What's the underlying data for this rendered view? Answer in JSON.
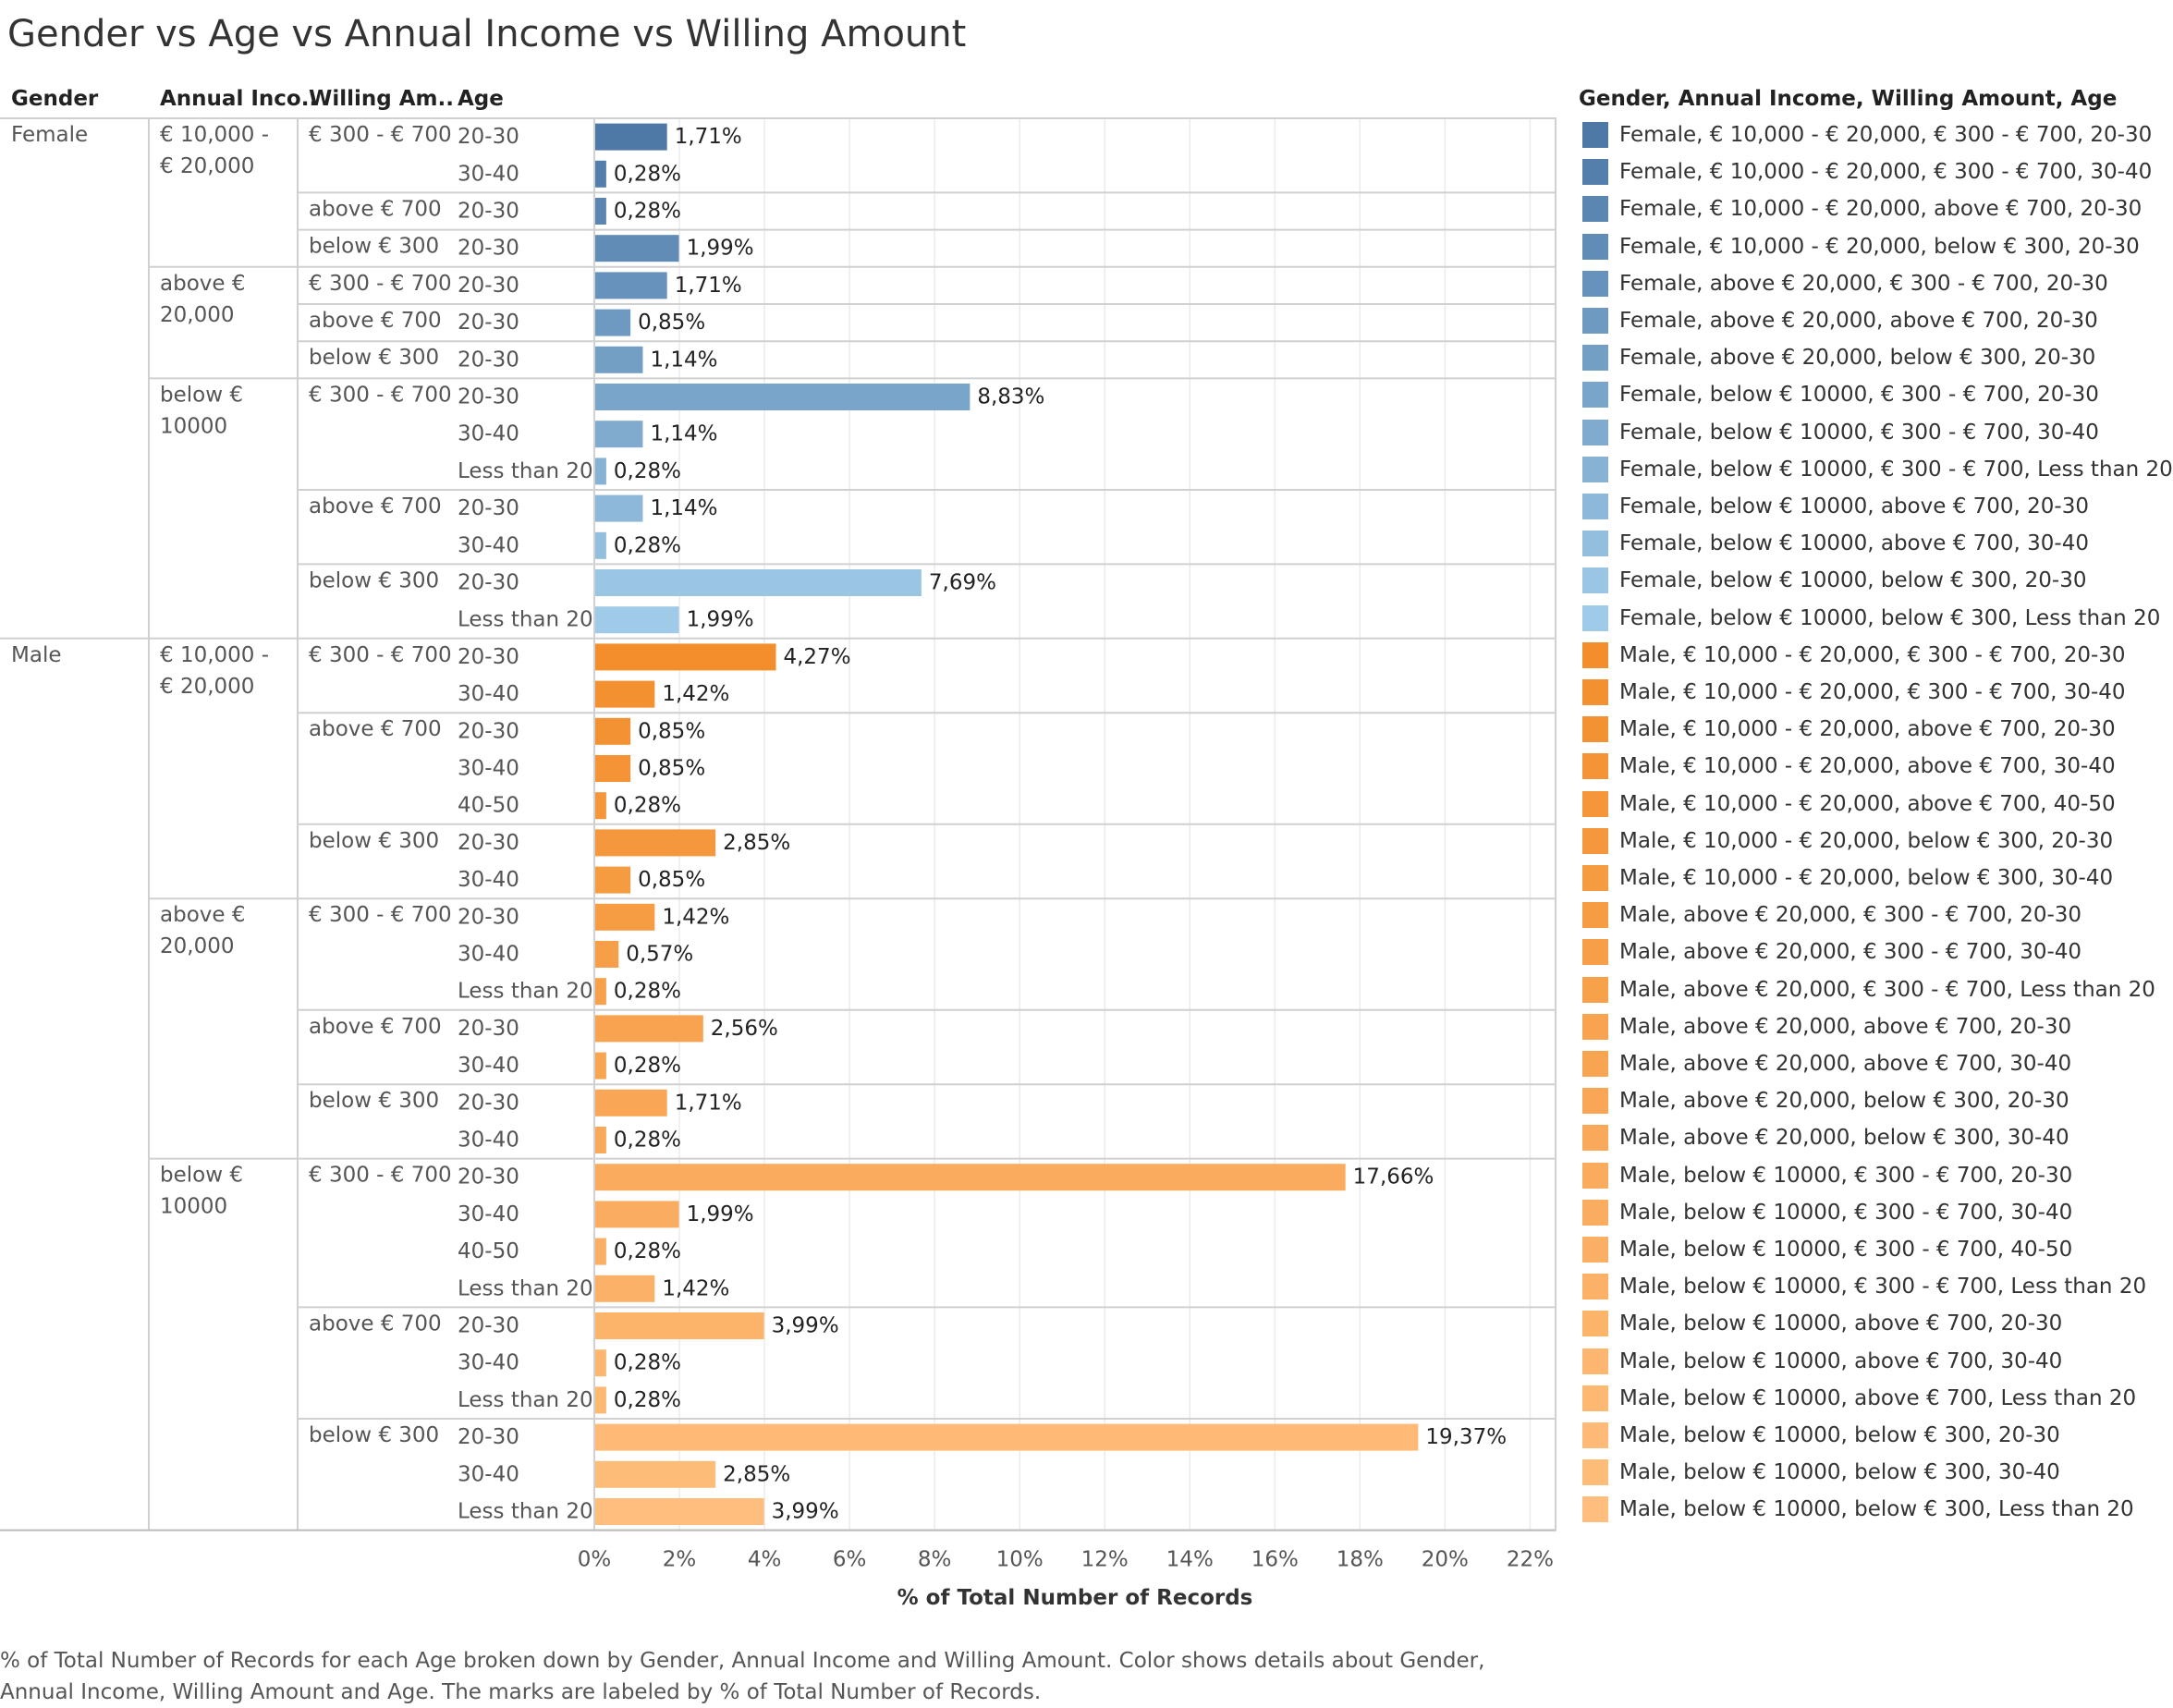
{
  "title": "Gender vs Age vs Annual Income vs Willing Amount",
  "headers": {
    "gender": "Gender",
    "income": "Annual Inco..",
    "willing": "Willing Am..",
    "age": "Age"
  },
  "legend_title": "Gender, Annual Income, Willing Amount, Age",
  "caption": "% of Total Number of Records for each Age broken down by Gender, Annual Income and Willing Amount.  Color shows details about Gender, Annual Income, Willing Amount and Age.  The marks are labeled by % of Total Number of Records.",
  "colors": {
    "female_start": "#4e79a7",
    "female_end": "#a0cbe8",
    "male_start": "#f28e2b",
    "male_end": "#ffbe7d"
  },
  "chart_data": {
    "type": "bar",
    "orientation": "horizontal",
    "xlabel": "% of Total Number of Records",
    "xlim": [
      0,
      22.6
    ],
    "x_ticks": [
      0,
      2,
      4,
      6,
      8,
      10,
      12,
      14,
      16,
      18,
      20,
      22
    ],
    "x_tick_labels": [
      "0%",
      "2%",
      "4%",
      "6%",
      "8%",
      "10%",
      "12%",
      "14%",
      "16%",
      "18%",
      "20%",
      "22%"
    ],
    "grid": true,
    "legend_position": "right",
    "rows": [
      {
        "gender": "Female",
        "income": "€ 10,000 - € 20,000",
        "willing": "€ 300 - € 700",
        "age": "20-30",
        "value": 1.71,
        "label": "1,71%",
        "legend": "Female, € 10,000 - € 20,000, € 300 - € 700, 20-30"
      },
      {
        "gender": "Female",
        "income": "€ 10,000 - € 20,000",
        "willing": "€ 300 - € 700",
        "age": "30-40",
        "value": 0.28,
        "label": "0,28%",
        "legend": "Female, € 10,000 - € 20,000, € 300 - € 700, 30-40"
      },
      {
        "gender": "Female",
        "income": "€ 10,000 - € 20,000",
        "willing": "above € 700",
        "age": "20-30",
        "value": 0.28,
        "label": "0,28%",
        "legend": "Female, € 10,000 - € 20,000, above € 700, 20-30"
      },
      {
        "gender": "Female",
        "income": "€ 10,000 - € 20,000",
        "willing": "below € 300",
        "age": "20-30",
        "value": 1.99,
        "label": "1,99%",
        "legend": "Female, € 10,000 - € 20,000, below € 300, 20-30"
      },
      {
        "gender": "Female",
        "income": "above € 20,000",
        "willing": "€ 300 - € 700",
        "age": "20-30",
        "value": 1.71,
        "label": "1,71%",
        "legend": "Female, above € 20,000, € 300 - € 700, 20-30"
      },
      {
        "gender": "Female",
        "income": "above € 20,000",
        "willing": "above € 700",
        "age": "20-30",
        "value": 0.85,
        "label": "0,85%",
        "legend": "Female, above € 20,000, above € 700, 20-30"
      },
      {
        "gender": "Female",
        "income": "above € 20,000",
        "willing": "below € 300",
        "age": "20-30",
        "value": 1.14,
        "label": "1,14%",
        "legend": "Female, above € 20,000, below € 300, 20-30"
      },
      {
        "gender": "Female",
        "income": "below € 10000",
        "willing": "€ 300 - € 700",
        "age": "20-30",
        "value": 8.83,
        "label": "8,83%",
        "legend": "Female, below € 10000, € 300 - € 700, 20-30"
      },
      {
        "gender": "Female",
        "income": "below € 10000",
        "willing": "€ 300 - € 700",
        "age": "30-40",
        "value": 1.14,
        "label": "1,14%",
        "legend": "Female, below € 10000, € 300 - € 700, 30-40"
      },
      {
        "gender": "Female",
        "income": "below € 10000",
        "willing": "€ 300 - € 700",
        "age": "Less than 20",
        "value": 0.28,
        "label": "0,28%",
        "legend": "Female, below € 10000, € 300 - € 700, Less than 20"
      },
      {
        "gender": "Female",
        "income": "below € 10000",
        "willing": "above € 700",
        "age": "20-30",
        "value": 1.14,
        "label": "1,14%",
        "legend": "Female, below € 10000, above € 700, 20-30"
      },
      {
        "gender": "Female",
        "income": "below € 10000",
        "willing": "above € 700",
        "age": "30-40",
        "value": 0.28,
        "label": "0,28%",
        "legend": "Female, below € 10000, above € 700, 30-40"
      },
      {
        "gender": "Female",
        "income": "below € 10000",
        "willing": "below € 300",
        "age": "20-30",
        "value": 7.69,
        "label": "7,69%",
        "legend": "Female, below € 10000, below € 300, 20-30"
      },
      {
        "gender": "Female",
        "income": "below € 10000",
        "willing": "below € 300",
        "age": "Less than 20",
        "value": 1.99,
        "label": "1,99%",
        "legend": "Female, below € 10000, below € 300, Less than 20"
      },
      {
        "gender": "Male",
        "income": "€ 10,000 - € 20,000",
        "willing": "€ 300 - € 700",
        "age": "20-30",
        "value": 4.27,
        "label": "4,27%",
        "legend": "Male, € 10,000 - € 20,000, € 300 - € 700, 20-30"
      },
      {
        "gender": "Male",
        "income": "€ 10,000 - € 20,000",
        "willing": "€ 300 - € 700",
        "age": "30-40",
        "value": 1.42,
        "label": "1,42%",
        "legend": "Male, € 10,000 - € 20,000, € 300 - € 700, 30-40"
      },
      {
        "gender": "Male",
        "income": "€ 10,000 - € 20,000",
        "willing": "above € 700",
        "age": "20-30",
        "value": 0.85,
        "label": "0,85%",
        "legend": "Male, € 10,000 - € 20,000, above € 700, 20-30"
      },
      {
        "gender": "Male",
        "income": "€ 10,000 - € 20,000",
        "willing": "above € 700",
        "age": "30-40",
        "value": 0.85,
        "label": "0,85%",
        "legend": "Male, € 10,000 - € 20,000, above € 700, 30-40"
      },
      {
        "gender": "Male",
        "income": "€ 10,000 - € 20,000",
        "willing": "above € 700",
        "age": "40-50",
        "value": 0.28,
        "label": "0,28%",
        "legend": "Male, € 10,000 - € 20,000, above € 700, 40-50"
      },
      {
        "gender": "Male",
        "income": "€ 10,000 - € 20,000",
        "willing": "below € 300",
        "age": "20-30",
        "value": 2.85,
        "label": "2,85%",
        "legend": "Male, € 10,000 - € 20,000, below € 300, 20-30"
      },
      {
        "gender": "Male",
        "income": "€ 10,000 - € 20,000",
        "willing": "below € 300",
        "age": "30-40",
        "value": 0.85,
        "label": "0,85%",
        "legend": "Male, € 10,000 - € 20,000, below € 300, 30-40"
      },
      {
        "gender": "Male",
        "income": "above € 20,000",
        "willing": "€ 300 - € 700",
        "age": "20-30",
        "value": 1.42,
        "label": "1,42%",
        "legend": "Male, above € 20,000, € 300 - € 700, 20-30"
      },
      {
        "gender": "Male",
        "income": "above € 20,000",
        "willing": "€ 300 - € 700",
        "age": "30-40",
        "value": 0.57,
        "label": "0,57%",
        "legend": "Male, above € 20,000, € 300 - € 700, 30-40"
      },
      {
        "gender": "Male",
        "income": "above € 20,000",
        "willing": "€ 300 - € 700",
        "age": "Less than 20",
        "value": 0.28,
        "label": "0,28%",
        "legend": "Male, above € 20,000, € 300 - € 700, Less than 20"
      },
      {
        "gender": "Male",
        "income": "above € 20,000",
        "willing": "above € 700",
        "age": "20-30",
        "value": 2.56,
        "label": "2,56%",
        "legend": "Male, above € 20,000, above € 700, 20-30"
      },
      {
        "gender": "Male",
        "income": "above € 20,000",
        "willing": "above € 700",
        "age": "30-40",
        "value": 0.28,
        "label": "0,28%",
        "legend": "Male, above € 20,000, above € 700, 30-40"
      },
      {
        "gender": "Male",
        "income": "above € 20,000",
        "willing": "below € 300",
        "age": "20-30",
        "value": 1.71,
        "label": "1,71%",
        "legend": "Male, above € 20,000, below € 300, 20-30"
      },
      {
        "gender": "Male",
        "income": "above € 20,000",
        "willing": "below € 300",
        "age": "30-40",
        "value": 0.28,
        "label": "0,28%",
        "legend": "Male, above € 20,000, below € 300, 30-40"
      },
      {
        "gender": "Male",
        "income": "below € 10000",
        "willing": "€ 300 - € 700",
        "age": "20-30",
        "value": 17.66,
        "label": "17,66%",
        "legend": "Male, below € 10000, € 300 - € 700, 20-30"
      },
      {
        "gender": "Male",
        "income": "below € 10000",
        "willing": "€ 300 - € 700",
        "age": "30-40",
        "value": 1.99,
        "label": "1,99%",
        "legend": "Male, below € 10000, € 300 - € 700, 30-40"
      },
      {
        "gender": "Male",
        "income": "below € 10000",
        "willing": "€ 300 - € 700",
        "age": "40-50",
        "value": 0.28,
        "label": "0,28%",
        "legend": "Male, below € 10000, € 300 - € 700, 40-50"
      },
      {
        "gender": "Male",
        "income": "below € 10000",
        "willing": "€ 300 - € 700",
        "age": "Less than 20",
        "value": 1.42,
        "label": "1,42%",
        "legend": "Male, below € 10000, € 300 - € 700, Less than 20"
      },
      {
        "gender": "Male",
        "income": "below € 10000",
        "willing": "above € 700",
        "age": "20-30",
        "value": 3.99,
        "label": "3,99%",
        "legend": "Male, below € 10000, above € 700, 20-30"
      },
      {
        "gender": "Male",
        "income": "below € 10000",
        "willing": "above € 700",
        "age": "30-40",
        "value": 0.28,
        "label": "0,28%",
        "legend": "Male, below € 10000, above € 700, 30-40"
      },
      {
        "gender": "Male",
        "income": "below € 10000",
        "willing": "above € 700",
        "age": "Less than 20",
        "value": 0.28,
        "label": "0,28%",
        "legend": "Male, below € 10000, above € 700, Less than 20"
      },
      {
        "gender": "Male",
        "income": "below € 10000",
        "willing": "below € 300",
        "age": "20-30",
        "value": 19.37,
        "label": "19,37%",
        "legend": "Male, below € 10000, below € 300, 20-30"
      },
      {
        "gender": "Male",
        "income": "below € 10000",
        "willing": "below € 300",
        "age": "30-40",
        "value": 2.85,
        "label": "2,85%",
        "legend": "Male, below € 10000, below € 300, 30-40"
      },
      {
        "gender": "Male",
        "income": "below € 10000",
        "willing": "below € 300",
        "age": "Less than 20",
        "value": 3.99,
        "label": "3,99%",
        "legend": "Male, below € 10000, below € 300, Less than 20"
      }
    ]
  }
}
